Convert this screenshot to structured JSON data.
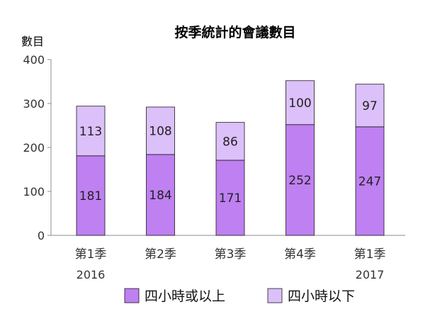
{
  "chart_data": {
    "type": "bar",
    "stacked": true,
    "title": "按季統計的會議數目",
    "ylabel": "數目",
    "xlabel": "",
    "ylim": [
      0,
      400
    ],
    "yticks": [
      0,
      100,
      200,
      300,
      400
    ],
    "categories": [
      "第1季",
      "第2季",
      "第3季",
      "第4季",
      "第1季"
    ],
    "year_labels": [
      {
        "category_index": 0,
        "label": "2016"
      },
      {
        "category_index": 4,
        "label": "2017"
      }
    ],
    "series": [
      {
        "name": "四小時或以上",
        "color": "#bf80f2",
        "values": [
          181,
          184,
          171,
          252,
          247
        ]
      },
      {
        "name": "四小時以下",
        "color": "#dcc0fa",
        "values": [
          113,
          108,
          86,
          100,
          97
        ]
      }
    ],
    "grid": false,
    "legend": "bottom"
  }
}
